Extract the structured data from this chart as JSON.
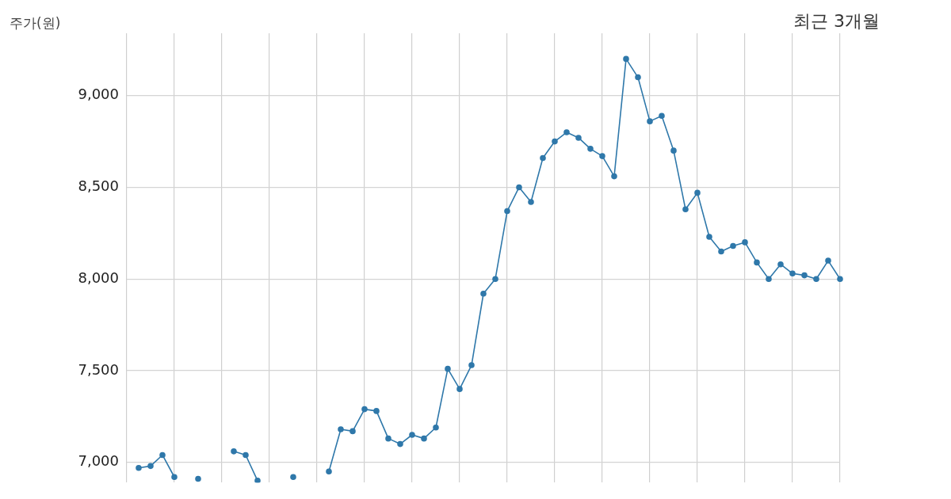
{
  "chart_data": {
    "type": "line",
    "title": "최근 3개월",
    "ylabel": "주가(원)",
    "categories": [
      null,
      null,
      null,
      null,
      null,
      null,
      null,
      null,
      null,
      null,
      null,
      null,
      null,
      null,
      null,
      null,
      null,
      null,
      null,
      null,
      null,
      null,
      null,
      null,
      null,
      null,
      null,
      null,
      null,
      null,
      null,
      null,
      null,
      null,
      null,
      null,
      null,
      null,
      null,
      null,
      null,
      null,
      null,
      null,
      null,
      null,
      null,
      null,
      null,
      null,
      null,
      null,
      null,
      null,
      null,
      null,
      null,
      null,
      null,
      null,
      null
    ],
    "series": [
      {
        "color": "#2f78aa",
        "values": [
          null,
          6970,
          6980,
          7040,
          6920,
          null,
          null,
          null,
          null,
          null,
          null,
          null,
          null,
          null,
          null,
          null,
          null,
          null,
          null,
          null,
          null,
          null,
          null,
          null,
          null,
          null,
          null,
          null,
          null,
          null,
          null,
          null,
          null,
          null,
          null,
          null,
          null,
          null,
          null,
          null,
          null,
          null,
          null,
          null,
          null,
          null,
          null,
          null,
          null,
          null,
          null,
          null,
          null,
          null,
          null,
          null,
          null,
          null,
          null,
          null,
          null
        ]
      },
      {
        "color": "#2f78aa",
        "values": [
          null,
          null,
          null,
          null,
          null,
          null,
          6910,
          null,
          null,
          null,
          null,
          null,
          null,
          null,
          null,
          null,
          null,
          null,
          null,
          null,
          null,
          null,
          null,
          null,
          null,
          null,
          null,
          null,
          null,
          null,
          null,
          null,
          null,
          null,
          null,
          null,
          null,
          null,
          null,
          null,
          null,
          null,
          null,
          null,
          null,
          null,
          null,
          null,
          null,
          null,
          null,
          null,
          null,
          null,
          null,
          null,
          null,
          null,
          null,
          null,
          null
        ]
      },
      {
        "color": "#2f78aa",
        "values": [
          null,
          null,
          null,
          null,
          null,
          null,
          null,
          null,
          null,
          7060,
          7040,
          6900,
          null,
          null,
          null,
          null,
          null,
          null,
          null,
          null,
          null,
          null,
          null,
          null,
          null,
          null,
          null,
          null,
          null,
          null,
          null,
          null,
          null,
          null,
          null,
          null,
          null,
          null,
          null,
          null,
          null,
          null,
          null,
          null,
          null,
          null,
          null,
          null,
          null,
          null,
          null,
          null,
          null,
          null,
          null,
          null,
          null,
          null,
          null,
          null,
          null
        ]
      },
      {
        "color": "#2f78aa",
        "values": [
          null,
          null,
          null,
          null,
          null,
          null,
          null,
          null,
          null,
          null,
          null,
          null,
          null,
          null,
          6920,
          null,
          null,
          null,
          null,
          null,
          null,
          null,
          null,
          null,
          null,
          null,
          null,
          null,
          null,
          null,
          null,
          null,
          null,
          null,
          null,
          null,
          null,
          null,
          null,
          null,
          null,
          null,
          null,
          null,
          null,
          null,
          null,
          null,
          null,
          null,
          null,
          null,
          null,
          null,
          null,
          null,
          null,
          null,
          null,
          null,
          null
        ]
      },
      {
        "color": "#2f78aa",
        "values": [
          null,
          null,
          null,
          null,
          null,
          null,
          null,
          null,
          null,
          null,
          null,
          null,
          null,
          null,
          null,
          null,
          null,
          6950,
          7180,
          7170,
          7290,
          7280,
          7130,
          7100,
          7150,
          7130,
          7190,
          7510,
          7400,
          7530,
          7920,
          8000,
          8370,
          8500,
          8420,
          8660,
          8750,
          8800,
          8770,
          8710,
          8670,
          8560,
          9200,
          9100,
          8860,
          8890,
          8700,
          8380,
          8470,
          8230,
          8150,
          8180,
          8200,
          8090,
          8000,
          8080,
          8030,
          8020,
          8000,
          8100,
          8000
        ]
      }
    ],
    "ylim": [
      6890,
      9340
    ],
    "yticks": [
      {
        "value": 7000,
        "label": "7,000"
      },
      {
        "value": 7500,
        "label": "7,500"
      },
      {
        "value": 8000,
        "label": "8,000"
      },
      {
        "value": 8500,
        "label": "8,500"
      },
      {
        "value": 9000,
        "label": "9,000"
      }
    ],
    "grid": true,
    "legend": false,
    "marker": "circle",
    "line_style": "solid"
  }
}
